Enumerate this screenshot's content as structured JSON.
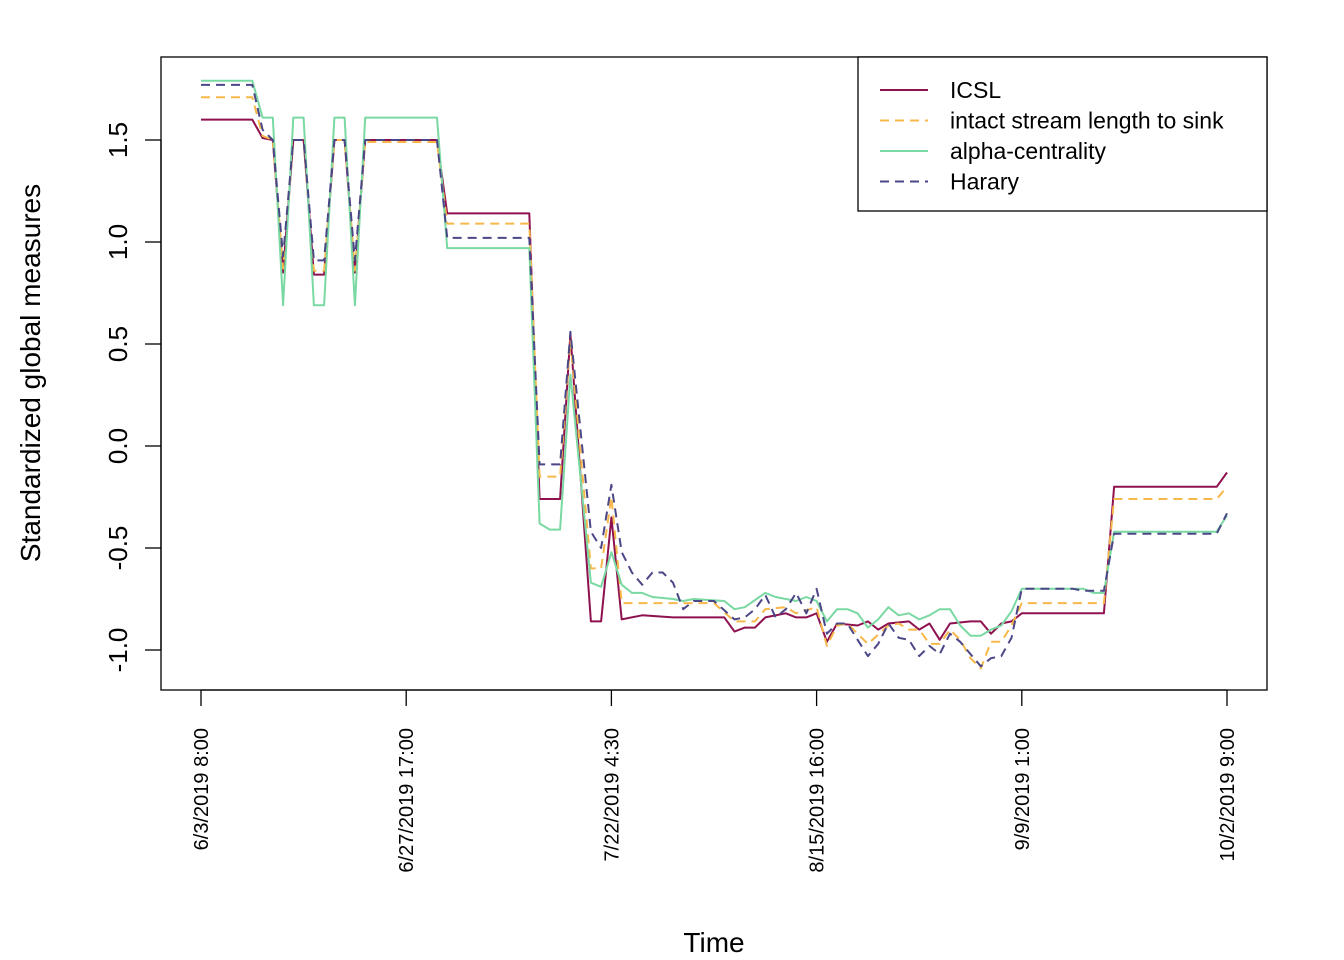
{
  "chart_data": {
    "type": "line",
    "title": "",
    "xlabel": "Time",
    "ylabel": "Standardized global measures",
    "ylim": [
      -1.2,
      1.8
    ],
    "x_range": [
      0,
      100
    ],
    "y_ticks": [
      {
        "value": 1.5,
        "label": "1.5"
      },
      {
        "value": 1.0,
        "label": "1.0"
      },
      {
        "value": 0.5,
        "label": "0.5"
      },
      {
        "value": 0.0,
        "label": "0.0"
      },
      {
        "value": -0.5,
        "label": "-0.5"
      },
      {
        "value": -1.0,
        "label": "-1.0"
      }
    ],
    "x_ticks": [
      {
        "value": 0,
        "label": "6/3/2019 8:00"
      },
      {
        "value": 20,
        "label": "6/27/2019 17:00"
      },
      {
        "value": 40,
        "label": "7/22/2019 4:30"
      },
      {
        "value": 60,
        "label": "8/15/2019 16:00"
      },
      {
        "value": 80,
        "label": "9/9/2019 1:00"
      },
      {
        "value": 100,
        "label": "10/2/2019 9:00"
      }
    ],
    "grid": false,
    "legend_position": "top-right",
    "series": [
      {
        "name": "ICSL",
        "color": "#8e1150",
        "dash": "solid",
        "points": [
          [
            0,
            1.6
          ],
          [
            5,
            1.6
          ],
          [
            6,
            1.51
          ],
          [
            7,
            1.5
          ],
          [
            8,
            0.85
          ],
          [
            9,
            1.5
          ],
          [
            10,
            1.5
          ],
          [
            11,
            0.84
          ],
          [
            12,
            0.84
          ],
          [
            13,
            1.5
          ],
          [
            14,
            1.5
          ],
          [
            15,
            0.85
          ],
          [
            16,
            1.5
          ],
          [
            23,
            1.5
          ],
          [
            24,
            1.14
          ],
          [
            32,
            1.14
          ],
          [
            33,
            -0.26
          ],
          [
            35,
            -0.26
          ],
          [
            36,
            0.55
          ],
          [
            38,
            -0.86
          ],
          [
            39,
            -0.86
          ],
          [
            40,
            -0.35
          ],
          [
            41,
            -0.85
          ],
          [
            43,
            -0.83
          ],
          [
            46,
            -0.84
          ],
          [
            51,
            -0.84
          ],
          [
            52,
            -0.91
          ],
          [
            53,
            -0.89
          ],
          [
            54,
            -0.89
          ],
          [
            55,
            -0.84
          ],
          [
            57,
            -0.82
          ],
          [
            58,
            -0.84
          ],
          [
            59,
            -0.84
          ],
          [
            60,
            -0.82
          ],
          [
            61,
            -0.96
          ],
          [
            62,
            -0.87
          ],
          [
            64,
            -0.88
          ],
          [
            65,
            -0.86
          ],
          [
            66,
            -0.9
          ],
          [
            67,
            -0.87
          ],
          [
            69,
            -0.86
          ],
          [
            70,
            -0.9
          ],
          [
            71,
            -0.87
          ],
          [
            72,
            -0.95
          ],
          [
            73,
            -0.87
          ],
          [
            75,
            -0.86
          ],
          [
            76,
            -0.86
          ],
          [
            77,
            -0.92
          ],
          [
            78,
            -0.87
          ],
          [
            79,
            -0.86
          ],
          [
            80,
            -0.82
          ],
          [
            88,
            -0.82
          ],
          [
            89,
            -0.2
          ],
          [
            99,
            -0.2
          ],
          [
            100,
            -0.13
          ]
        ]
      },
      {
        "name": "intact stream length to sink",
        "color": "#f7b84b",
        "dash": "dashed",
        "points": [
          [
            0,
            1.71
          ],
          [
            5,
            1.71
          ],
          [
            6,
            1.52
          ],
          [
            7,
            1.5
          ],
          [
            8,
            0.87
          ],
          [
            9,
            1.5
          ],
          [
            10,
            1.5
          ],
          [
            11,
            0.86
          ],
          [
            12,
            0.86
          ],
          [
            13,
            1.5
          ],
          [
            14,
            1.5
          ],
          [
            15,
            0.86
          ],
          [
            16,
            1.49
          ],
          [
            23,
            1.49
          ],
          [
            24,
            1.09
          ],
          [
            32,
            1.09
          ],
          [
            33,
            -0.15
          ],
          [
            35,
            -0.15
          ],
          [
            36,
            0.52
          ],
          [
            38,
            -0.6
          ],
          [
            39,
            -0.6
          ],
          [
            40,
            -0.25
          ],
          [
            41,
            -0.77
          ],
          [
            46,
            -0.77
          ],
          [
            50,
            -0.77
          ],
          [
            52,
            -0.86
          ],
          [
            54,
            -0.86
          ],
          [
            55,
            -0.8
          ],
          [
            57,
            -0.79
          ],
          [
            58,
            -0.82
          ],
          [
            60,
            -0.79
          ],
          [
            61,
            -0.98
          ],
          [
            62,
            -0.88
          ],
          [
            63,
            -0.87
          ],
          [
            64,
            -0.92
          ],
          [
            65,
            -0.97
          ],
          [
            67,
            -0.88
          ],
          [
            68,
            -0.87
          ],
          [
            69,
            -0.9
          ],
          [
            70,
            -0.9
          ],
          [
            71,
            -0.97
          ],
          [
            72,
            -0.97
          ],
          [
            73,
            -0.9
          ],
          [
            74,
            -0.95
          ],
          [
            75,
            -1.04
          ],
          [
            76,
            -1.09
          ],
          [
            77,
            -0.96
          ],
          [
            78,
            -0.96
          ],
          [
            79,
            -0.88
          ],
          [
            80,
            -0.77
          ],
          [
            88,
            -0.77
          ],
          [
            89,
            -0.26
          ],
          [
            99,
            -0.26
          ],
          [
            100,
            -0.2
          ]
        ]
      },
      {
        "name": "alpha-centrality",
        "color": "#7ad9a2",
        "dash": "solid",
        "points": [
          [
            0,
            1.79
          ],
          [
            5,
            1.79
          ],
          [
            6,
            1.61
          ],
          [
            7,
            1.61
          ],
          [
            8,
            0.69
          ],
          [
            9,
            1.61
          ],
          [
            10,
            1.61
          ],
          [
            11,
            0.69
          ],
          [
            12,
            0.69
          ],
          [
            13,
            1.61
          ],
          [
            14,
            1.61
          ],
          [
            15,
            0.69
          ],
          [
            16,
            1.61
          ],
          [
            23,
            1.61
          ],
          [
            24,
            0.97
          ],
          [
            32,
            0.97
          ],
          [
            33,
            -0.38
          ],
          [
            34,
            -0.41
          ],
          [
            35,
            -0.41
          ],
          [
            36,
            0.35
          ],
          [
            38,
            -0.67
          ],
          [
            39,
            -0.69
          ],
          [
            40,
            -0.52
          ],
          [
            41,
            -0.68
          ],
          [
            42,
            -0.72
          ],
          [
            43,
            -0.72
          ],
          [
            44,
            -0.74
          ],
          [
            46,
            -0.75
          ],
          [
            47,
            -0.76
          ],
          [
            48,
            -0.75
          ],
          [
            51,
            -0.76
          ],
          [
            52,
            -0.8
          ],
          [
            53,
            -0.79
          ],
          [
            55,
            -0.72
          ],
          [
            56,
            -0.74
          ],
          [
            58,
            -0.76
          ],
          [
            59,
            -0.74
          ],
          [
            60,
            -0.76
          ],
          [
            61,
            -0.86
          ],
          [
            62,
            -0.8
          ],
          [
            63,
            -0.8
          ],
          [
            64,
            -0.82
          ],
          [
            65,
            -0.89
          ],
          [
            66,
            -0.85
          ],
          [
            67,
            -0.79
          ],
          [
            68,
            -0.83
          ],
          [
            69,
            -0.82
          ],
          [
            70,
            -0.85
          ],
          [
            71,
            -0.83
          ],
          [
            72,
            -0.8
          ],
          [
            73,
            -0.8
          ],
          [
            74,
            -0.88
          ],
          [
            75,
            -0.93
          ],
          [
            76,
            -0.93
          ],
          [
            77,
            -0.9
          ],
          [
            78,
            -0.88
          ],
          [
            79,
            -0.81
          ],
          [
            80,
            -0.7
          ],
          [
            86,
            -0.7
          ],
          [
            87,
            -0.72
          ],
          [
            88,
            -0.72
          ],
          [
            89,
            -0.42
          ],
          [
            99,
            -0.42
          ],
          [
            100,
            -0.34
          ]
        ]
      },
      {
        "name": "Harary",
        "color": "#4b4787",
        "dash": "dashed",
        "points": [
          [
            0,
            1.77
          ],
          [
            5,
            1.77
          ],
          [
            6,
            1.55
          ],
          [
            7,
            1.5
          ],
          [
            8,
            0.93
          ],
          [
            9,
            1.5
          ],
          [
            10,
            1.5
          ],
          [
            11,
            0.91
          ],
          [
            12,
            0.91
          ],
          [
            13,
            1.5
          ],
          [
            14,
            1.5
          ],
          [
            15,
            0.91
          ],
          [
            16,
            1.5
          ],
          [
            23,
            1.5
          ],
          [
            24,
            1.02
          ],
          [
            32,
            1.02
          ],
          [
            33,
            -0.09
          ],
          [
            35,
            -0.09
          ],
          [
            36,
            0.56
          ],
          [
            38,
            -0.42
          ],
          [
            39,
            -0.5
          ],
          [
            40,
            -0.19
          ],
          [
            41,
            -0.52
          ],
          [
            42,
            -0.62
          ],
          [
            43,
            -0.68
          ],
          [
            44,
            -0.62
          ],
          [
            45,
            -0.62
          ],
          [
            46,
            -0.67
          ],
          [
            47,
            -0.8
          ],
          [
            48,
            -0.76
          ],
          [
            50,
            -0.76
          ],
          [
            52,
            -0.85
          ],
          [
            53,
            -0.84
          ],
          [
            54,
            -0.8
          ],
          [
            55,
            -0.73
          ],
          [
            56,
            -0.84
          ],
          [
            57,
            -0.8
          ],
          [
            58,
            -0.72
          ],
          [
            59,
            -0.82
          ],
          [
            60,
            -0.7
          ],
          [
            61,
            -0.92
          ],
          [
            62,
            -0.87
          ],
          [
            63,
            -0.87
          ],
          [
            64,
            -0.95
          ],
          [
            65,
            -1.03
          ],
          [
            66,
            -0.97
          ],
          [
            67,
            -0.87
          ],
          [
            68,
            -0.94
          ],
          [
            69,
            -0.95
          ],
          [
            70,
            -1.03
          ],
          [
            71,
            -0.98
          ],
          [
            72,
            -1.02
          ],
          [
            73,
            -0.92
          ],
          [
            74,
            -0.96
          ],
          [
            75,
            -1.02
          ],
          [
            76,
            -1.08
          ],
          [
            77,
            -1.04
          ],
          [
            78,
            -1.03
          ],
          [
            79,
            -0.94
          ],
          [
            80,
            -0.7
          ],
          [
            85,
            -0.7
          ],
          [
            86,
            -0.71
          ],
          [
            88,
            -0.71
          ],
          [
            89,
            -0.43
          ],
          [
            99,
            -0.43
          ],
          [
            100,
            -0.33
          ]
        ]
      }
    ]
  }
}
